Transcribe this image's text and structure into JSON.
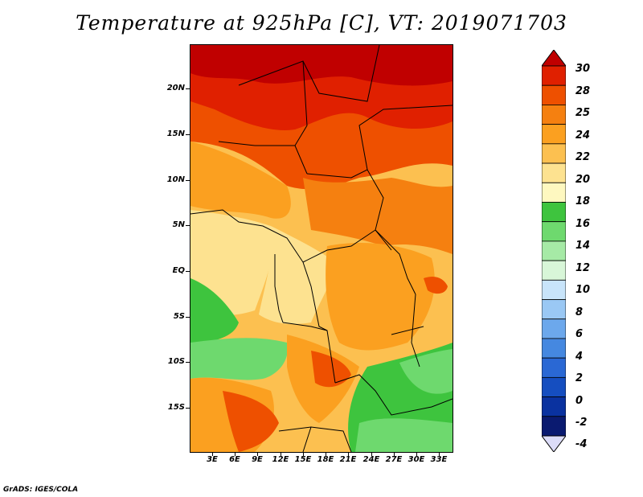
{
  "title": "Temperature at 925hPa [C], VT: 2019071703",
  "footer": "GrADS: IGES/COLA",
  "lat_labels": [
    "20N",
    "15N",
    "10N",
    "5N",
    "EQ",
    "5S",
    "10S",
    "15S"
  ],
  "lon_labels": [
    "3E",
    "6E",
    "9E",
    "12E",
    "15E",
    "18E",
    "21E",
    "24E",
    "27E",
    "30E",
    "33E"
  ],
  "colorbar": {
    "labels": [
      "30",
      "28",
      "25",
      "24",
      "22",
      "20",
      "18",
      "16",
      "14",
      "12",
      "10",
      "8",
      "6",
      "4",
      "2",
      "0",
      "-2",
      "-4"
    ],
    "colors": [
      "#c00000",
      "#e02000",
      "#ee5000",
      "#f58010",
      "#fba020",
      "#fcc050",
      "#fde290",
      "#fef8c0",
      "#3ec43e",
      "#6ed96e",
      "#a6eaa6",
      "#d8f6d8",
      "#c8e4fa",
      "#9ac8f4",
      "#6ca8ec",
      "#4588e0",
      "#2a68d4",
      "#154ec0",
      "#0a32a0",
      "#0a1a70",
      "#dcdcf8"
    ]
  }
}
